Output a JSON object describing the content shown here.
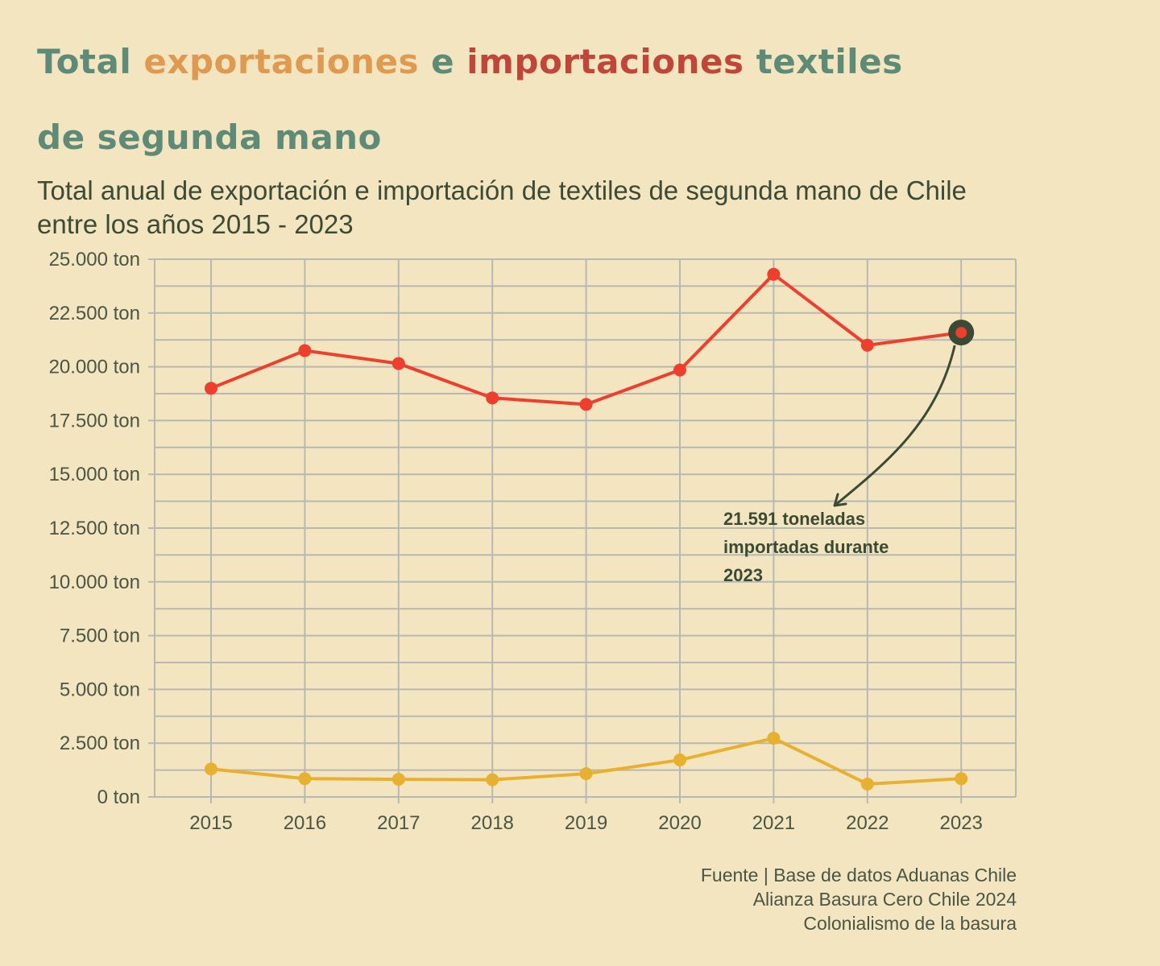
{
  "title": {
    "part1": "Total ",
    "exports_word": "exportaciones",
    "part2": " e ",
    "imports_word": "importaciones",
    "part3": " textiles",
    "line2": "de segunda mano"
  },
  "subtitle": "Total anual de exportación e importación de textiles de segunda mano de Chile entre los años 2015 - 2023",
  "source": [
    "Fuente | Base de datos Aduanas Chile",
    "Alianza Basura Cero Chile 2024",
    "Colonialismo de la basura"
  ],
  "colors": {
    "background": "#f3e5c0",
    "imports": "#ee3e2d",
    "exports": "#e8b030",
    "title_green": "#5e8a78",
    "grid": "#b8b8b2",
    "highlight": "#3a4a34"
  },
  "chart_data": {
    "type": "line",
    "categories": [
      "2015",
      "2016",
      "2017",
      "2018",
      "2019",
      "2020",
      "2021",
      "2022",
      "2023"
    ],
    "series": [
      {
        "name": "importaciones",
        "values": [
          19000,
          20750,
          20150,
          18550,
          18250,
          19850,
          24300,
          21000,
          21591
        ]
      },
      {
        "name": "exportaciones",
        "values": [
          1300,
          850,
          820,
          800,
          1080,
          1720,
          2730,
          600,
          850
        ]
      }
    ],
    "yticks": [
      0,
      2500,
      5000,
      7500,
      10000,
      12500,
      15000,
      17500,
      20000,
      22500,
      25000
    ],
    "ytick_labels": [
      "0 ton",
      "2.500 ton",
      "5.000 ton",
      "7.500 ton",
      "10.000 ton",
      "12.500 ton",
      "15.000 ton",
      "17.500 ton",
      "20.000 ton",
      "22.500 ton",
      "25.000 ton"
    ],
    "ylim": [
      0,
      25000
    ],
    "minor_grid_step": 1250,
    "grid": true,
    "annotation": {
      "lines": [
        "21.591 toneladas",
        "importadas durante",
        "2023"
      ],
      "series": "importaciones",
      "category": "2023"
    }
  }
}
